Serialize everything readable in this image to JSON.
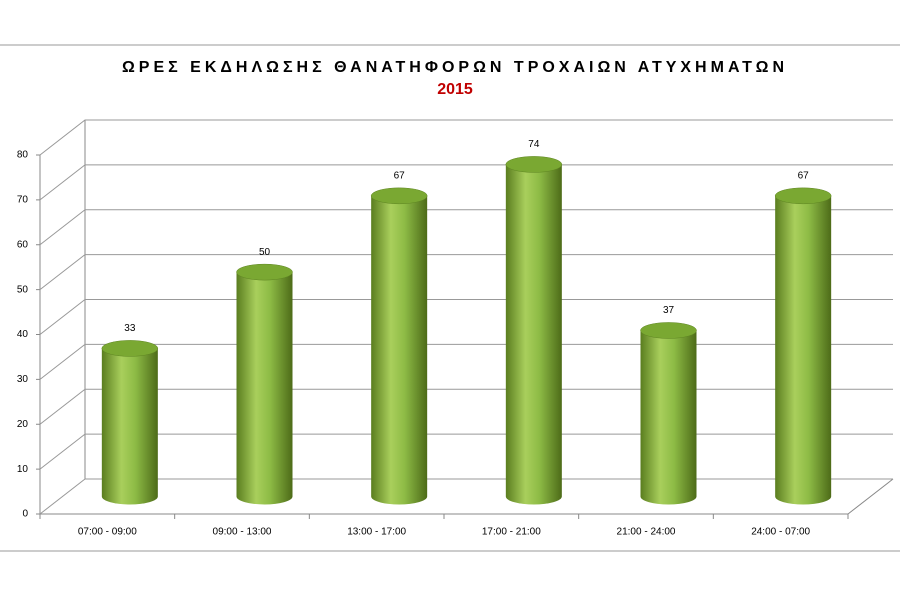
{
  "chart_data": {
    "type": "bar",
    "title": "ΩΡΕΣ ΕΚΔΗΛΩΣΗΣ ΘΑΝΑΤΗΦΟΡΩΝ ΤΡΟΧΑΙΩΝ ΑΤΥΧΗΜΑΤΩΝ",
    "subtitle": "2015",
    "categories": [
      "07:00 - 09:00",
      "09:00 - 13:00",
      "13:00 - 17:00",
      "17:00 - 21:00",
      "21:00 - 24:00",
      "24:00 - 07:00"
    ],
    "values": [
      33,
      50,
      67,
      74,
      37,
      67
    ],
    "color": "#8dbb45",
    "ylim": [
      0,
      80
    ],
    "yticks": [
      0,
      10,
      20,
      30,
      40,
      50,
      60,
      70,
      80
    ],
    "grid": true
  }
}
